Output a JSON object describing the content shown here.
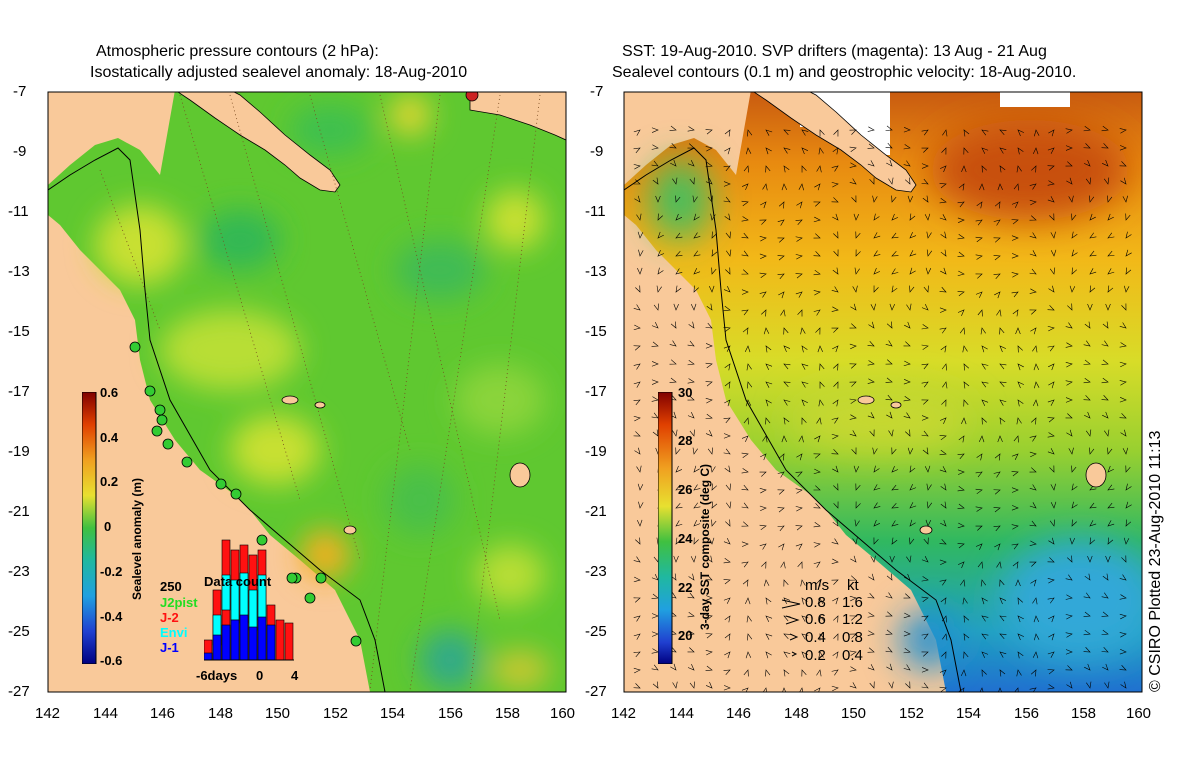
{
  "left_panel": {
    "title_line1": "Atmospheric pressure contours (2 hPa):",
    "title_line2": "Isostatically adjusted sealevel anomaly: 18-Aug-2010",
    "colorbar": {
      "label": "Sealevel anomaly (m)",
      "ticks": [
        "0.6",
        "0.4",
        "0.2",
        "0",
        "-0.2",
        "-0.4",
        "-0.6"
      ],
      "range": [
        -0.6,
        0.6
      ]
    },
    "histogram": {
      "title": "Data count",
      "max_label": "250",
      "x_labels": [
        "-6days",
        "0",
        "4"
      ],
      "legend": [
        {
          "name": "J2pist",
          "color": "#22dd22"
        },
        {
          "name": "J-2",
          "color": "#ff1111"
        },
        {
          "name": "Envi",
          "color": "#00ffff"
        },
        {
          "name": "J-1",
          "color": "#0000ff"
        }
      ]
    }
  },
  "right_panel": {
    "title_line1": "SST: 19-Aug-2010. SVP drifters (magenta): 13 Aug - 21 Aug",
    "title_line2": "Sealevel contours (0.1 m) and geostrophic velocity: 18-Aug-2010.",
    "colorbar": {
      "label": "3-day SST composite (deg C)",
      "ticks": [
        "30",
        "28",
        "26",
        "24",
        "22",
        "20"
      ],
      "range": [
        19,
        30
      ]
    },
    "velocity_legend": {
      "header_ms": "m/s",
      "header_kt": "kt",
      "rows": [
        {
          "ms": "0.8",
          "kt": "1.6"
        },
        {
          "ms": "0.6",
          "kt": "1.2"
        },
        {
          "ms": "0.4",
          "kt": "0.8"
        },
        {
          "ms": "0.2",
          "kt": "0.4"
        }
      ]
    }
  },
  "axes": {
    "lat_ticks": [
      "-7",
      "-9",
      "-11",
      "-13",
      "-15",
      "-17",
      "-19",
      "-21",
      "-23",
      "-25",
      "-27"
    ],
    "lon_ticks": [
      "142",
      "144",
      "146",
      "148",
      "150",
      "152",
      "154",
      "156",
      "158",
      "160"
    ]
  },
  "credit": "© CSIRO Plotted 23-Aug-2010 11:13",
  "colors": {
    "land": "#f9c99a",
    "sla_green": "#55cc33",
    "sst_warm": "#e07a10",
    "sst_cool": "#33bb66"
  }
}
